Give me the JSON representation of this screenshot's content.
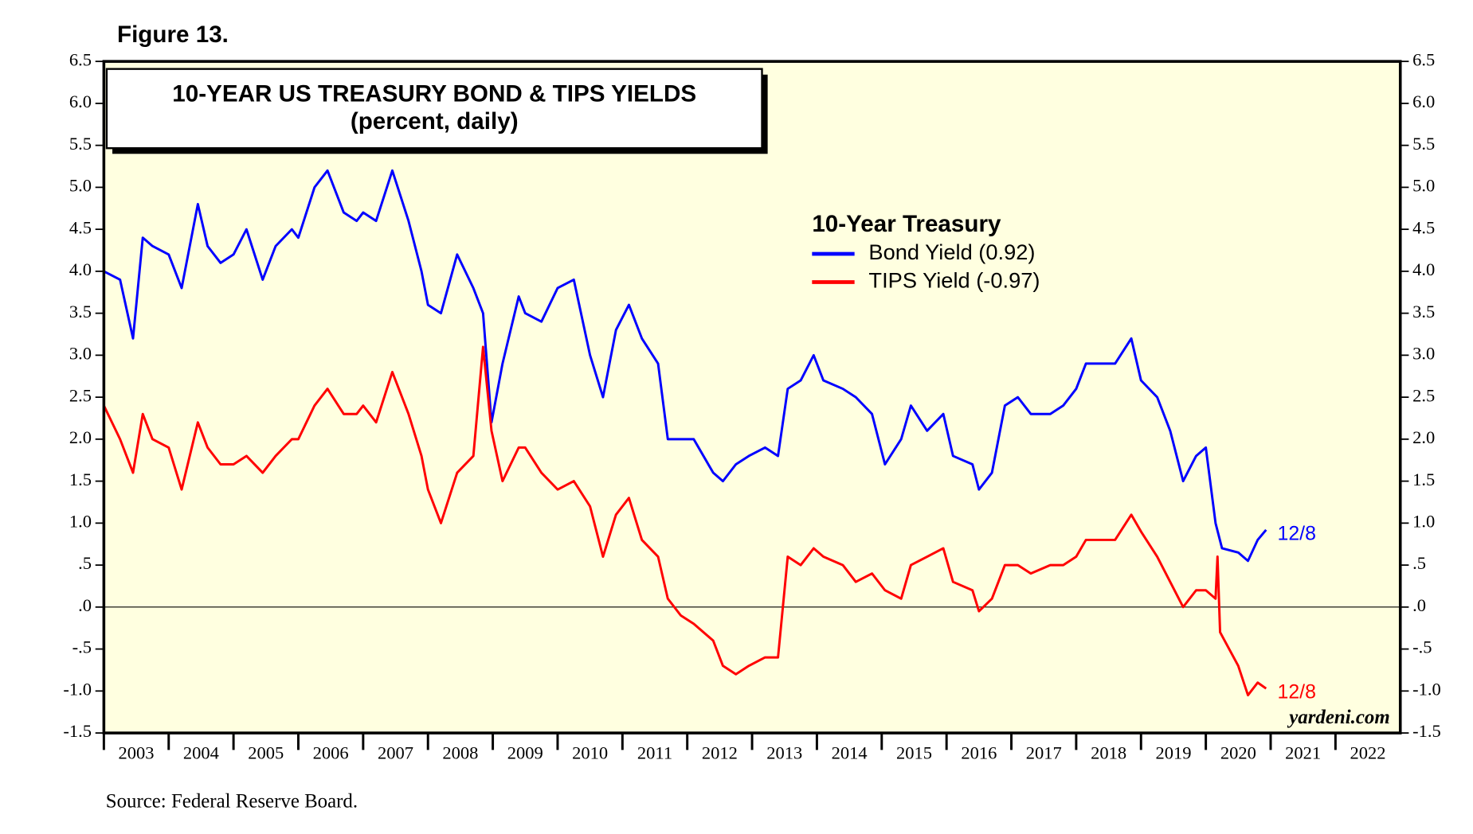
{
  "figure_label": "Figure 13.",
  "source": "Source: Federal Reserve Board.",
  "watermark": "yardeni.com",
  "chart_data": {
    "type": "line",
    "title": "10-YEAR US TREASURY BOND & TIPS YIELDS",
    "subtitle": "(percent, daily)",
    "legend_title": "10-Year Treasury",
    "background": "#ffffe0",
    "xlim": [
      2003,
      2023
    ],
    "xticks": [
      2003,
      2004,
      2005,
      2006,
      2007,
      2008,
      2009,
      2010,
      2011,
      2012,
      2013,
      2014,
      2015,
      2016,
      2017,
      2018,
      2019,
      2020,
      2021,
      2022
    ],
    "ylim": [
      -1.5,
      6.5
    ],
    "yticks": [
      6.5,
      {
        "value": 6.0,
        "label": "6.0"
      },
      5.5,
      {
        "value": 5.0,
        "label": "5.0"
      },
      4.5,
      {
        "value": 4.0,
        "label": "4.0"
      },
      3.5,
      {
        "value": 3.0,
        "label": "3.0"
      },
      2.5,
      {
        "value": 2.0,
        "label": "2.0"
      },
      1.5,
      {
        "value": 1.0,
        "label": "1.0"
      },
      {
        "value": 0.5,
        "label": ".5"
      },
      {
        "value": 0.0,
        "label": ".0"
      },
      {
        "value": -0.5,
        "label": "-.5"
      },
      {
        "value": -1.0,
        "label": "-1.0"
      },
      -1.5
    ],
    "series": [
      {
        "name": "Bond Yield (0.92)",
        "color": "#0000ff",
        "end_label": "12/8",
        "x": [
          2003.0,
          2003.25,
          2003.45,
          2003.6,
          2003.75,
          2004.0,
          2004.2,
          2004.45,
          2004.6,
          2004.8,
          2005.0,
          2005.2,
          2005.45,
          2005.65,
          2005.9,
          2006.0,
          2006.25,
          2006.45,
          2006.7,
          2006.9,
          2007.0,
          2007.2,
          2007.45,
          2007.7,
          2007.9,
          2008.0,
          2008.2,
          2008.45,
          2008.7,
          2008.85,
          2008.98,
          2009.15,
          2009.4,
          2009.5,
          2009.75,
          2010.0,
          2010.25,
          2010.5,
          2010.7,
          2010.9,
          2011.1,
          2011.3,
          2011.55,
          2011.7,
          2011.9,
          2012.1,
          2012.4,
          2012.55,
          2012.75,
          2012.95,
          2013.2,
          2013.4,
          2013.55,
          2013.75,
          2013.95,
          2014.1,
          2014.4,
          2014.6,
          2014.85,
          2015.05,
          2015.3,
          2015.45,
          2015.7,
          2015.95,
          2016.1,
          2016.4,
          2016.5,
          2016.7,
          2016.9,
          2017.1,
          2017.3,
          2017.6,
          2017.8,
          2018.0,
          2018.15,
          2018.4,
          2018.6,
          2018.85,
          2019.0,
          2019.25,
          2019.45,
          2019.65,
          2019.85,
          2020.0,
          2020.15,
          2020.25,
          2020.5,
          2020.65,
          2020.8,
          2020.93
        ],
        "values": [
          4.0,
          3.9,
          3.2,
          4.4,
          4.3,
          4.2,
          3.8,
          4.8,
          4.3,
          4.1,
          4.2,
          4.5,
          3.9,
          4.3,
          4.5,
          4.4,
          5.0,
          5.2,
          4.7,
          4.6,
          4.7,
          4.6,
          5.2,
          4.6,
          4.0,
          3.6,
          3.5,
          4.2,
          3.8,
          3.5,
          2.2,
          2.9,
          3.7,
          3.5,
          3.4,
          3.8,
          3.9,
          3.0,
          2.5,
          3.3,
          3.6,
          3.2,
          2.9,
          2.0,
          2.0,
          2.0,
          1.6,
          1.5,
          1.7,
          1.8,
          1.9,
          1.8,
          2.6,
          2.7,
          3.0,
          2.7,
          2.6,
          2.5,
          2.3,
          1.7,
          2.0,
          2.4,
          2.1,
          2.3,
          1.8,
          1.7,
          1.4,
          1.6,
          2.4,
          2.5,
          2.3,
          2.3,
          2.4,
          2.6,
          2.9,
          2.9,
          2.9,
          3.2,
          2.7,
          2.5,
          2.1,
          1.5,
          1.8,
          1.9,
          1.0,
          0.7,
          0.65,
          0.55,
          0.8,
          0.92
        ]
      },
      {
        "name": "TIPS Yield (-0.97)",
        "color": "#ff0000",
        "end_label": "12/8",
        "x": [
          2003.0,
          2003.25,
          2003.45,
          2003.6,
          2003.75,
          2004.0,
          2004.2,
          2004.45,
          2004.6,
          2004.8,
          2005.0,
          2005.2,
          2005.45,
          2005.65,
          2005.9,
          2006.0,
          2006.25,
          2006.45,
          2006.7,
          2006.9,
          2007.0,
          2007.2,
          2007.45,
          2007.7,
          2007.9,
          2008.0,
          2008.2,
          2008.45,
          2008.7,
          2008.85,
          2008.98,
          2009.15,
          2009.4,
          2009.5,
          2009.75,
          2010.0,
          2010.25,
          2010.5,
          2010.7,
          2010.9,
          2011.1,
          2011.3,
          2011.55,
          2011.7,
          2011.9,
          2012.1,
          2012.4,
          2012.55,
          2012.75,
          2012.95,
          2013.2,
          2013.4,
          2013.55,
          2013.75,
          2013.95,
          2014.1,
          2014.4,
          2014.6,
          2014.85,
          2015.05,
          2015.3,
          2015.45,
          2015.7,
          2015.95,
          2016.1,
          2016.4,
          2016.5,
          2016.7,
          2016.9,
          2017.1,
          2017.3,
          2017.6,
          2017.8,
          2018.0,
          2018.15,
          2018.4,
          2018.6,
          2018.85,
          2019.0,
          2019.25,
          2019.45,
          2019.65,
          2019.85,
          2020.0,
          2020.15,
          2020.18,
          2020.22,
          2020.5,
          2020.65,
          2020.8,
          2020.93
        ],
        "values": [
          2.4,
          2.0,
          1.6,
          2.3,
          2.0,
          1.9,
          1.4,
          2.2,
          1.9,
          1.7,
          1.7,
          1.8,
          1.6,
          1.8,
          2.0,
          2.0,
          2.4,
          2.6,
          2.3,
          2.3,
          2.4,
          2.2,
          2.8,
          2.3,
          1.8,
          1.4,
          1.0,
          1.6,
          1.8,
          3.1,
          2.1,
          1.5,
          1.9,
          1.9,
          1.6,
          1.4,
          1.5,
          1.2,
          0.6,
          1.1,
          1.3,
          0.8,
          0.6,
          0.1,
          -0.1,
          -0.2,
          -0.4,
          -0.7,
          -0.8,
          -0.7,
          -0.6,
          -0.6,
          0.6,
          0.5,
          0.7,
          0.6,
          0.5,
          0.3,
          0.4,
          0.2,
          0.1,
          0.5,
          0.6,
          0.7,
          0.3,
          0.2,
          -0.05,
          0.1,
          0.5,
          0.5,
          0.4,
          0.5,
          0.5,
          0.6,
          0.8,
          0.8,
          0.8,
          1.1,
          0.9,
          0.6,
          0.3,
          0.0,
          0.2,
          0.2,
          0.1,
          0.6,
          -0.3,
          -0.7,
          -1.05,
          -0.9,
          -0.97
        ]
      }
    ]
  }
}
